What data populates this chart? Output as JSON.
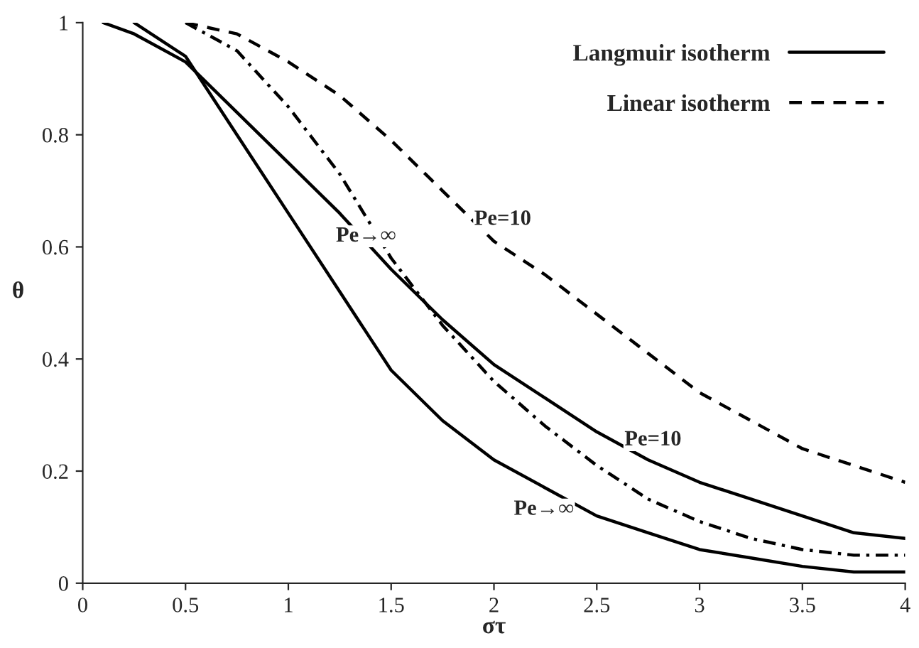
{
  "chart_data": {
    "type": "line",
    "xlabel": "στ",
    "ylabel": "θ",
    "x": [
      0.1,
      0.25,
      0.5,
      0.75,
      1.0,
      1.25,
      1.5,
      1.75,
      2.0,
      2.25,
      2.5,
      2.75,
      3.0,
      3.25,
      3.5,
      3.75,
      4.0
    ],
    "series": [
      {
        "name": "Langmuir isotherm",
        "color": "#000000",
        "line_style": "solid",
        "values": [
          1.0,
          0.98,
          0.93,
          0.84,
          0.75,
          0.66,
          0.56,
          0.47,
          0.39,
          0.33,
          0.27,
          0.22,
          0.18,
          0.15,
          0.12,
          0.09,
          0.08
        ]
      },
      {
        "color": "#000000",
        "line_style": "solid",
        "values": [
          null,
          1.0,
          0.94,
          0.8,
          0.66,
          0.52,
          0.38,
          0.29,
          0.22,
          0.17,
          0.12,
          0.09,
          0.06,
          0.045,
          0.03,
          0.02,
          0.02
        ]
      },
      {
        "name": "Linear isotherm",
        "color": "#000000",
        "line_style": "dashed",
        "values": [
          null,
          null,
          1.0,
          0.98,
          0.93,
          0.87,
          0.79,
          0.7,
          0.61,
          0.55,
          0.48,
          0.41,
          0.34,
          0.29,
          0.24,
          0.21,
          0.18
        ]
      },
      {
        "color": "#000000",
        "line_style": "dashdot",
        "values": [
          null,
          null,
          1.0,
          0.95,
          0.85,
          0.73,
          0.58,
          0.46,
          0.36,
          0.28,
          0.21,
          0.15,
          0.11,
          0.08,
          0.06,
          0.05,
          0.05
        ]
      }
    ],
    "xlim": [
      0,
      4
    ],
    "xticks": [
      0,
      0.5,
      1,
      1.5,
      2,
      2.5,
      3,
      3.5,
      4
    ],
    "ylim": [
      0,
      1
    ],
    "yticks": [
      0,
      0.2,
      0.4,
      0.6,
      0.8,
      1
    ],
    "legend": "top right",
    "grid": false,
    "marker": "none",
    "annotations": [
      {
        "text": "Pe→∞",
        "x": 1.5,
        "y": 0.58
      },
      {
        "text": "Pe=10",
        "x": 2.0,
        "y": 0.61
      },
      {
        "text": "Pe=10",
        "x": 2.75,
        "y": 0.22
      },
      {
        "text": "Pe→∞",
        "x": 2.25,
        "y": 0.17
      }
    ]
  }
}
